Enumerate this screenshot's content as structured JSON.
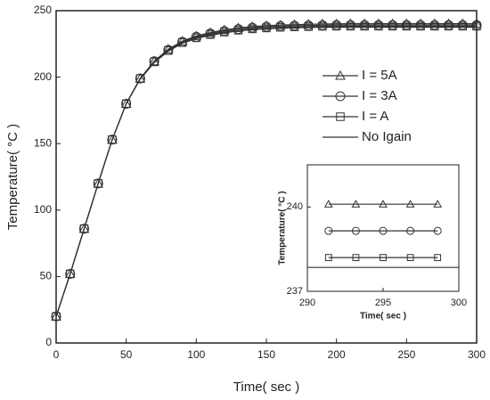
{
  "chart_data": [
    {
      "type": "line",
      "xlabel": "Time( sec )",
      "ylabel": "Temperature( °C )",
      "xlim": [
        0,
        300
      ],
      "ylim": [
        0,
        250
      ],
      "xticks": [
        0,
        50,
        100,
        150,
        200,
        250,
        300
      ],
      "yticks": [
        0,
        50,
        100,
        150,
        200,
        250
      ],
      "legend": "right",
      "x": [
        0,
        10,
        20,
        30,
        40,
        50,
        60,
        70,
        80,
        90,
        100,
        110,
        120,
        130,
        140,
        150,
        160,
        170,
        180,
        190,
        200,
        210,
        220,
        230,
        240,
        250,
        260,
        270,
        280,
        290,
        300
      ],
      "series": [
        {
          "name": "I = 5A",
          "marker": "triangle",
          "color": "#333333",
          "values": [
            20,
            52,
            86,
            120,
            153,
            180,
            199,
            212,
            221,
            227,
            231,
            233.5,
            235.5,
            237,
            238,
            238.7,
            239.2,
            239.5,
            239.8,
            240,
            240.1,
            240.2,
            240.2,
            240.2,
            240.2,
            240.2,
            240.2,
            240.2,
            240.2,
            240.2,
            240.2
          ]
        },
        {
          "name": "I = 3A",
          "marker": "circle",
          "color": "#333333",
          "values": [
            20,
            52,
            86,
            120,
            153,
            180,
            199,
            212,
            220.5,
            226.5,
            230.3,
            232.8,
            234.7,
            236.2,
            237.2,
            237.9,
            238.4,
            238.7,
            238.9,
            239.1,
            239.2,
            239.2,
            239.2,
            239.2,
            239.2,
            239.2,
            239.2,
            239.2,
            239.2,
            239.2,
            239.2
          ]
        },
        {
          "name": "I =  A",
          "marker": "square",
          "color": "#333333",
          "values": [
            20,
            52,
            86,
            120,
            153,
            180,
            199,
            211.5,
            220,
            226,
            229.6,
            232,
            233.9,
            235.3,
            236.3,
            237,
            237.5,
            237.8,
            238,
            238.2,
            238.3,
            238.3,
            238.3,
            238.3,
            238.3,
            238.3,
            238.3,
            238.3,
            238.3,
            238.3,
            238.3
          ]
        },
        {
          "name": "No Igain",
          "marker": "none",
          "color": "#333333",
          "values": [
            20,
            52,
            86,
            120,
            153,
            180,
            198.5,
            211,
            219.5,
            225.5,
            229,
            231.5,
            233.3,
            234.7,
            235.7,
            236.4,
            236.9,
            237.2,
            237.4,
            237.5,
            237.6,
            237.6,
            237.6,
            237.6,
            237.6,
            237.6,
            237.6,
            237.6,
            237.6,
            237.6,
            237.6
          ]
        }
      ]
    },
    {
      "type": "line",
      "xlabel": "Time( sec )",
      "ylabel": "Temperature( °C )",
      "xlim": [
        290,
        300
      ],
      "ylim": [
        237,
        241.5
      ],
      "xticks": [
        290,
        295,
        300
      ],
      "yticks": [
        237,
        240
      ],
      "series": [
        {
          "marker": "triangle",
          "color": "#333333",
          "x": [
            291.4,
            293.2,
            295,
            296.8,
            298.6
          ],
          "values": [
            240.1,
            240.1,
            240.1,
            240.1,
            240.1
          ]
        },
        {
          "marker": "circle",
          "color": "#333333",
          "x": [
            291.4,
            293.2,
            295,
            296.8,
            298.6
          ],
          "values": [
            239.15,
            239.15,
            239.15,
            239.15,
            239.15
          ]
        },
        {
          "marker": "square",
          "color": "#333333",
          "x": [
            291.4,
            293.2,
            295,
            296.8,
            298.6
          ],
          "values": [
            238.2,
            238.2,
            238.2,
            238.2,
            238.2
          ]
        },
        {
          "marker": "none",
          "color": "#333333",
          "x": [
            290,
            300
          ],
          "values": [
            237.85,
            237.85
          ]
        }
      ]
    }
  ]
}
